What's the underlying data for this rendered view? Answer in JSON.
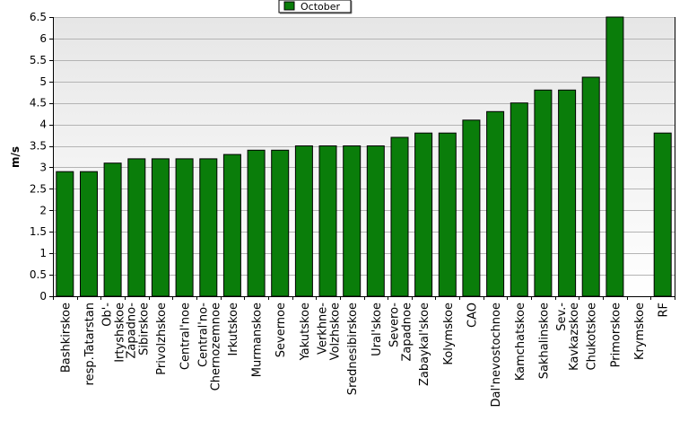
{
  "chart_data": {
    "type": "bar",
    "ylabel": "m/s",
    "ylim": [
      0,
      6.5
    ],
    "yticks": [
      0,
      0.5,
      1,
      1.5,
      2,
      2.5,
      3,
      3.5,
      4,
      4.5,
      5,
      5.5,
      6,
      6.5
    ],
    "grid": true,
    "legend_position": "top-center",
    "categories": [
      [
        "Bashkirskoe"
      ],
      [
        "resp.Tatarstan"
      ],
      [
        "Ob'-",
        "Irtyshskoe"
      ],
      [
        "Zapadno-",
        "Sibirskoe"
      ],
      [
        "Privolzhskoe"
      ],
      [
        "Central'noe"
      ],
      [
        "Central'no-",
        "Chernozemnoe"
      ],
      [
        "Irkutskoe"
      ],
      [
        "Murmanskoe"
      ],
      [
        "Severnoe"
      ],
      [
        "Yakutskoe"
      ],
      [
        "Verkhne-",
        "Volzhskoe"
      ],
      [
        "Srednesibirskoe"
      ],
      [
        "Ural'skoe"
      ],
      [
        "Severo-",
        "Zapadnoe"
      ],
      [
        "Zabaykal'skoe"
      ],
      [
        "Kolymskoe"
      ],
      [
        "CAO"
      ],
      [
        "Dal'nevostochnoe"
      ],
      [
        "Kamchatskoe"
      ],
      [
        "Sakhalinskoe"
      ],
      [
        "Sev.-",
        "Kavkazskoe"
      ],
      [
        "Chukotskoe"
      ],
      [
        "Primorskoe"
      ],
      [
        "Krymskoe"
      ],
      [
        "RF"
      ]
    ],
    "series": [
      {
        "name": "October",
        "color": "#0a7d0a",
        "values": [
          2.9,
          2.9,
          3.1,
          3.2,
          3.2,
          3.2,
          3.2,
          3.3,
          3.4,
          3.4,
          3.5,
          3.5,
          3.5,
          3.5,
          3.7,
          3.8,
          3.8,
          4.1,
          4.3,
          4.5,
          4.8,
          4.8,
          5.1,
          6.5,
          null,
          3.8
        ]
      }
    ]
  }
}
